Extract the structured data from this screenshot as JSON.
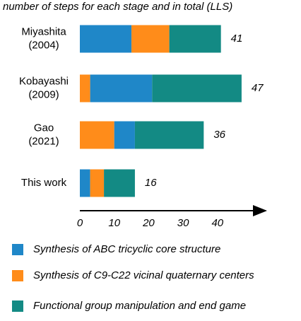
{
  "chart_data": {
    "type": "stacked-bar-horizontal",
    "title": "number of steps for each stage and in total (LLS)",
    "categories": [
      [
        "Miyashita",
        "(2004)"
      ],
      [
        "Kobayashi",
        "(2009)"
      ],
      [
        "Gao",
        "(2021)"
      ],
      [
        "This work"
      ]
    ],
    "series": [
      {
        "name": "Synthesis of ABC tricyclic core structure",
        "color": "#1f87c8",
        "values": [
          15,
          18,
          6,
          3
        ]
      },
      {
        "name": "Synthesis of C9-C22 vicinal quaternary centers",
        "color": "#ff8c1a",
        "values": [
          11,
          3,
          10,
          4
        ]
      },
      {
        "name": "Functional group manipulation and end game",
        "color": "#138a84",
        "values": [
          15,
          26,
          20,
          9
        ]
      }
    ],
    "stack_order": [
      [
        0,
        1,
        2
      ],
      [
        1,
        0,
        2
      ],
      [
        1,
        0,
        2
      ],
      [
        0,
        1,
        2
      ]
    ],
    "totals": [
      41,
      47,
      36,
      16
    ],
    "xlim": [
      0,
      54
    ],
    "xticks": [
      0,
      10,
      20,
      30,
      40
    ]
  }
}
